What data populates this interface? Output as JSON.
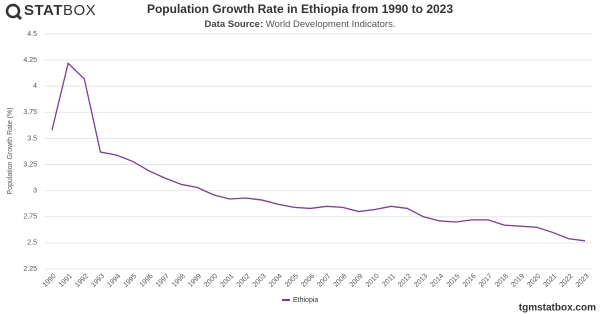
{
  "logo": {
    "bold": "STAT",
    "light": "BOX"
  },
  "footer": "tgmstatbox.com",
  "chart_data": {
    "type": "line",
    "title": "Population Growth Rate in Ethiopia from 1990 to 2023",
    "subtitle_label": "Data Source:",
    "subtitle": "World Development Indicators.",
    "y_label": "Population Growth Rate (%)",
    "categories": [
      "1990",
      "1991",
      "1992",
      "1993",
      "1994",
      "1995",
      "1996",
      "1997",
      "1998",
      "1999",
      "2000",
      "2001",
      "2002",
      "2003",
      "2004",
      "2005",
      "2006",
      "2007",
      "2008",
      "2009",
      "2010",
      "2011",
      "2012",
      "2013",
      "2014",
      "2015",
      "2016",
      "2017",
      "2018",
      "2019",
      "2020",
      "2021",
      "2022",
      "2023"
    ],
    "series": [
      {
        "name": "Ethiopia",
        "color": "#7d3c98",
        "values": [
          3.58,
          4.22,
          4.07,
          3.37,
          3.34,
          3.28,
          3.19,
          3.12,
          3.06,
          3.03,
          2.96,
          2.92,
          2.93,
          2.91,
          2.87,
          2.84,
          2.83,
          2.85,
          2.84,
          2.8,
          2.82,
          2.85,
          2.83,
          2.75,
          2.71,
          2.7,
          2.72,
          2.72,
          2.67,
          2.66,
          2.65,
          2.6,
          2.54,
          2.52
        ]
      }
    ],
    "ylim": [
      2.25,
      4.5
    ],
    "yticks": [
      2.25,
      2.5,
      2.75,
      3,
      3.25,
      3.5,
      3.75,
      4,
      4.25,
      4.5
    ],
    "grid": true,
    "legend": "bottom"
  }
}
